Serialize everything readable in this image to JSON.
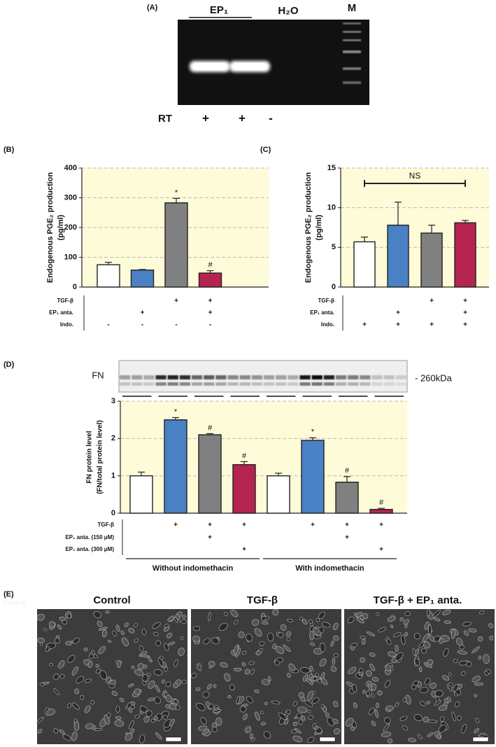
{
  "panel_a": {
    "panel_label": "(A)",
    "lanes_label": "EP₁",
    "water": "H₂O",
    "marker": "M",
    "row_label": "RT",
    "row_marks": [
      "+",
      "+",
      "-"
    ]
  },
  "chart_data": [
    {
      "type": "bar",
      "panel_label": "(B)",
      "ylabel": "Endogenous PGE₂ production",
      "ylabel_unit": "(pg/ml)",
      "values": [
        75,
        57,
        283,
        47
      ],
      "errors": [
        8,
        2,
        15,
        8
      ],
      "colors": [
        "#ffffff",
        "#4a80c4",
        "#808080",
        "#b52450"
      ],
      "annotations": [
        null,
        null,
        "*",
        "#"
      ],
      "ylim": [
        0,
        400
      ],
      "yticks": [
        0,
        100,
        200,
        300,
        400
      ],
      "grid": true,
      "conditions": [
        {
          "label": "TGF-β",
          "marks": [
            null,
            null,
            "+",
            "+"
          ]
        },
        {
          "label": "EP₁ anta.",
          "marks": [
            null,
            "+",
            null,
            "+"
          ]
        },
        {
          "label": "Indo.",
          "marks": [
            "-",
            "-",
            "-",
            "-"
          ]
        }
      ]
    },
    {
      "type": "bar",
      "panel_label": "(C)",
      "ylabel": "Endogenous PGE₂ production",
      "ylabel_unit": "(pg/ml)",
      "values": [
        5.7,
        7.8,
        6.8,
        8.1
      ],
      "errors": [
        0.6,
        2.9,
        1.0,
        0.3
      ],
      "colors": [
        "#ffffff",
        "#4a80c4",
        "#808080",
        "#b52450"
      ],
      "bracket_label": "NS",
      "ylim": [
        0,
        15
      ],
      "yticks": [
        0,
        5,
        10,
        15
      ],
      "grid": true,
      "conditions": [
        {
          "label": "TGF-β",
          "marks": [
            null,
            null,
            "+",
            "+"
          ]
        },
        {
          "label": "EP₁ anta.",
          "marks": [
            null,
            "+",
            null,
            "+"
          ]
        },
        {
          "label": "Indo.",
          "marks": [
            "+",
            "+",
            "+",
            "+"
          ]
        }
      ]
    },
    {
      "type": "bar",
      "panel_label": "(D)",
      "ylabel": "FN protein level",
      "ylabel_unit": "(FN/total protein level)",
      "blot_label": "FN",
      "blot_size": "- 260kDa",
      "values": [
        1.0,
        2.5,
        2.1,
        1.3,
        1.0,
        1.95,
        0.83,
        0.1
      ],
      "errors": [
        0.1,
        0.06,
        0.03,
        0.08,
        0.07,
        0.07,
        0.15,
        0.03
      ],
      "colors": [
        "#ffffff",
        "#4a80c4",
        "#808080",
        "#b52450",
        "#ffffff",
        "#4a80c4",
        "#808080",
        "#b52450"
      ],
      "annotations": [
        null,
        "*",
        "#",
        "#",
        null,
        "*",
        "#",
        "#"
      ],
      "ylim": [
        0,
        3
      ],
      "yticks": [
        0,
        1,
        2,
        3
      ],
      "grid": true,
      "conditions": [
        {
          "label": "TGF-β",
          "marks": [
            null,
            "+",
            "+",
            "+",
            null,
            "+",
            "+",
            "+"
          ]
        },
        {
          "label": "EP₁ anta. (150 μM)",
          "marks": [
            null,
            null,
            "+",
            null,
            null,
            null,
            "+",
            null
          ]
        },
        {
          "label": "EP₁ anta. (300 μM)",
          "marks": [
            null,
            null,
            null,
            "+",
            null,
            null,
            null,
            "+"
          ]
        }
      ],
      "groups": [
        "Without indomethacin",
        "With indomethacin"
      ]
    }
  ],
  "panel_e": {
    "panel_label": "(E)",
    "titles": [
      "Control",
      "TGF-β",
      "TGF-β + EP₁ anta."
    ],
    "side_text": "Control"
  }
}
